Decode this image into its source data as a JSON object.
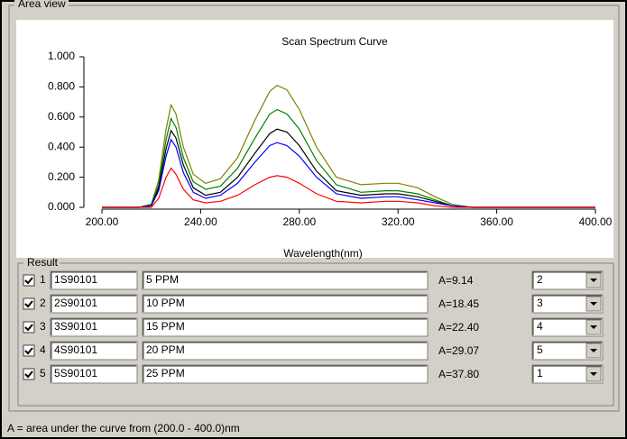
{
  "panel_title": "Area view",
  "chart_data": {
    "type": "line",
    "title": "Scan Spectrum Curve",
    "x_label": "Wavelength(nm)",
    "x": [
      200,
      215,
      220,
      223,
      226,
      228,
      230,
      233,
      237,
      242,
      248,
      255,
      262,
      268,
      271,
      275,
      280,
      287,
      295,
      305,
      315,
      320,
      328,
      335,
      342,
      350,
      400
    ],
    "series": [
      {
        "color": "#808000",
        "values": [
          0,
          0,
          0.02,
          0.18,
          0.52,
          0.68,
          0.62,
          0.4,
          0.22,
          0.16,
          0.19,
          0.33,
          0.58,
          0.77,
          0.81,
          0.78,
          0.65,
          0.4,
          0.2,
          0.15,
          0.16,
          0.16,
          0.13,
          0.07,
          0.02,
          0,
          0
        ]
      },
      {
        "color": "#008000",
        "values": [
          0,
          0,
          0.02,
          0.15,
          0.45,
          0.59,
          0.53,
          0.33,
          0.17,
          0.12,
          0.14,
          0.26,
          0.46,
          0.62,
          0.65,
          0.62,
          0.52,
          0.31,
          0.15,
          0.1,
          0.11,
          0.11,
          0.09,
          0.05,
          0.01,
          0,
          0
        ]
      },
      {
        "color": "#000000",
        "values": [
          0,
          0,
          0.01,
          0.13,
          0.39,
          0.51,
          0.46,
          0.28,
          0.13,
          0.08,
          0.1,
          0.2,
          0.36,
          0.49,
          0.52,
          0.5,
          0.41,
          0.24,
          0.11,
          0.08,
          0.09,
          0.09,
          0.07,
          0.04,
          0.01,
          0,
          0
        ]
      },
      {
        "color": "#0000ff",
        "values": [
          0,
          0,
          0.01,
          0.11,
          0.34,
          0.45,
          0.4,
          0.23,
          0.1,
          0.06,
          0.08,
          0.16,
          0.3,
          0.41,
          0.43,
          0.41,
          0.34,
          0.2,
          0.09,
          0.06,
          0.07,
          0.07,
          0.05,
          0.03,
          0.01,
          0,
          0
        ]
      },
      {
        "color": "#ff0000",
        "values": [
          0,
          0,
          0,
          0.06,
          0.2,
          0.26,
          0.22,
          0.12,
          0.05,
          0.03,
          0.04,
          0.08,
          0.15,
          0.2,
          0.21,
          0.2,
          0.16,
          0.09,
          0.04,
          0.03,
          0.04,
          0.04,
          0.03,
          0.01,
          0,
          0,
          0
        ]
      }
    ],
    "xlim": [
      200,
      400
    ],
    "xticks": [
      {
        "value": 200,
        "label": "200.00"
      },
      {
        "value": 240,
        "label": "240.00"
      },
      {
        "value": 280,
        "label": "280.00"
      },
      {
        "value": 320,
        "label": "320.00"
      },
      {
        "value": 360,
        "label": "360.00"
      },
      {
        "value": 400,
        "label": "400.00"
      }
    ],
    "ylim": [
      0,
      1
    ],
    "yticks": [
      {
        "value": 0,
        "label": "0.000"
      },
      {
        "value": 0.2,
        "label": "0.200"
      },
      {
        "value": 0.4,
        "label": "0.400"
      },
      {
        "value": 0.6,
        "label": "0.600"
      },
      {
        "value": 0.8,
        "label": "0.800"
      },
      {
        "value": 1,
        "label": "1.000"
      }
    ]
  },
  "result": {
    "title": "Result",
    "rows": [
      {
        "index": "1",
        "id": "1S90101",
        "name": "5 PPM",
        "area": "A=9.14",
        "order": "2",
        "color": "#ff0000"
      },
      {
        "index": "2",
        "id": "2S90101",
        "name": "10 PPM",
        "area": "A=18.45",
        "order": "3",
        "color": "#0000ff"
      },
      {
        "index": "3",
        "id": "3S90101",
        "name": "15 PPM",
        "area": "A=22.40",
        "order": "4",
        "color": "#000000"
      },
      {
        "index": "4",
        "id": "4S90101",
        "name": "20 PPM",
        "area": "A=29.07",
        "order": "5",
        "color": "#008000"
      },
      {
        "index": "5",
        "id": "5S90101",
        "name": "25 PPM",
        "area": "A=37.80",
        "order": "1",
        "color": "#808000"
      }
    ]
  },
  "footnote": "A = area under the curve from (200.0 - 400.0)nm"
}
